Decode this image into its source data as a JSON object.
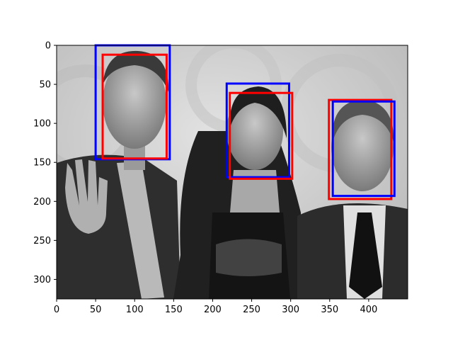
{
  "figure": {
    "image_extent": {
      "x": [
        0,
        450
      ],
      "y": [
        0,
        325
      ]
    },
    "x_ticks": [
      0,
      50,
      100,
      150,
      200,
      250,
      300,
      350,
      400
    ],
    "y_ticks": [
      0,
      50,
      100,
      150,
      200,
      250,
      300
    ],
    "box_colors": {
      "blue": "#0000ff",
      "red": "#ff0000"
    },
    "boxes": [
      {
        "color": "blue",
        "x0": 50,
        "y0": 0,
        "x1": 145,
        "y1": 146
      },
      {
        "color": "red",
        "x0": 59,
        "y0": 12,
        "x1": 141,
        "y1": 145
      },
      {
        "color": "blue",
        "x0": 218,
        "y0": 49,
        "x1": 298,
        "y1": 169
      },
      {
        "color": "red",
        "x0": 222,
        "y0": 61,
        "x1": 302,
        "y1": 171
      },
      {
        "color": "red",
        "x0": 349,
        "y0": 70,
        "x1": 429,
        "y1": 197
      },
      {
        "color": "blue",
        "x0": 354,
        "y0": 72,
        "x1": 433,
        "y1": 193
      }
    ]
  }
}
